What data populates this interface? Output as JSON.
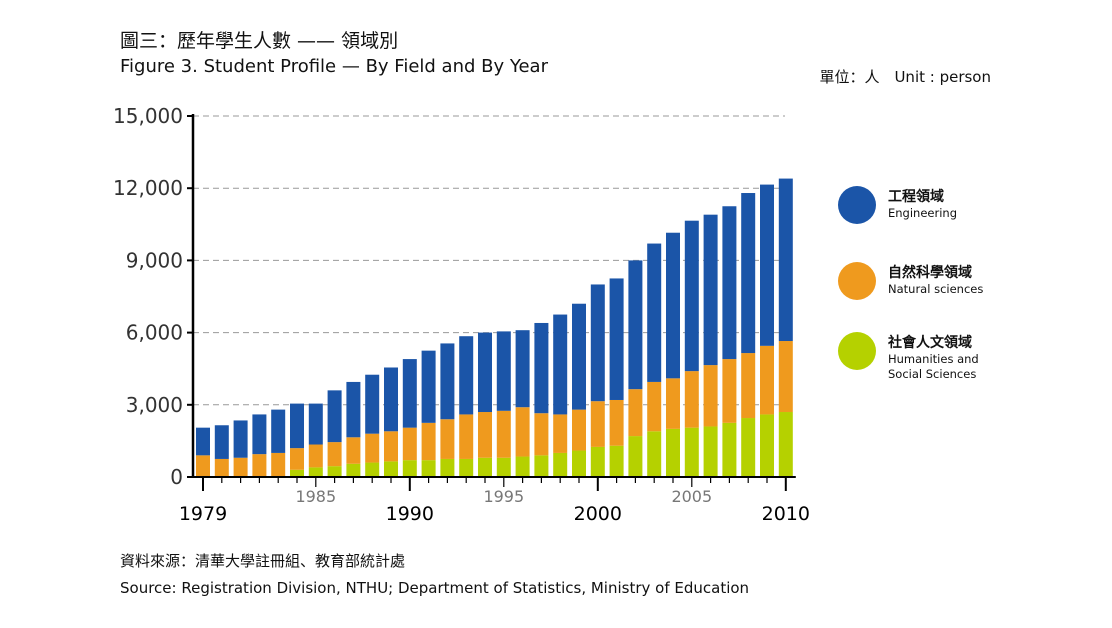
{
  "title_zh": "圖三：歷年學生人數 —— 領域別",
  "title_en": "Figure 3. Student Profile — By Field and By Year",
  "unit_label": "單位：人　Unit : person",
  "source_zh": "資料來源：清華大學註冊組、教育部統計處",
  "source_en": "Source: Registration Division, NTHU; Department of Statistics, Ministry of Education",
  "legend": [
    {
      "zh": "工程領域",
      "en": "Engineering",
      "color": "#1b55a8"
    },
    {
      "zh": "自然科學領域",
      "en": "Natural sciences",
      "color": "#ef9a1e"
    },
    {
      "zh": "社會人文領域",
      "en": "Humanities and Social Sciences",
      "color": "#b5d100"
    }
  ],
  "chart_data": {
    "type": "bar",
    "stacked": true,
    "categories": [
      1979,
      1980,
      1981,
      1982,
      1983,
      1984,
      1985,
      1986,
      1987,
      1988,
      1989,
      1990,
      1991,
      1992,
      1993,
      1994,
      1995,
      1996,
      1997,
      1998,
      1999,
      2000,
      2001,
      2002,
      2003,
      2004,
      2005,
      2006,
      2007,
      2008,
      2009,
      2010
    ],
    "series": [
      {
        "name": "社會人文領域",
        "color": "#b5d100",
        "values": [
          0,
          0,
          0,
          0,
          0,
          300,
          400,
          450,
          550,
          600,
          650,
          700,
          700,
          750,
          750,
          800,
          800,
          850,
          900,
          1000,
          1100,
          1250,
          1300,
          1700,
          1900,
          2000,
          2050,
          2100,
          2250,
          2450,
          2600,
          2700
        ]
      },
      {
        "name": "自然科學領域",
        "color": "#ef9a1e",
        "values": [
          900,
          750,
          800,
          950,
          1000,
          900,
          950,
          1000,
          1100,
          1200,
          1250,
          1350,
          1550,
          1650,
          1850,
          1900,
          1950,
          2050,
          1750,
          1600,
          1700,
          1900,
          1900,
          1950,
          2050,
          2100,
          2350,
          2550,
          2650,
          2700,
          2850,
          2950
        ]
      },
      {
        "name": "工程領域",
        "color": "#1b55a8",
        "values": [
          1150,
          1400,
          1550,
          1650,
          1800,
          1850,
          1700,
          2150,
          2300,
          2450,
          2650,
          2850,
          3000,
          3150,
          3250,
          3300,
          3300,
          3200,
          3750,
          4150,
          4400,
          4850,
          5050,
          5350,
          5750,
          6050,
          6250,
          6250,
          6350,
          6650,
          6700,
          6750
        ]
      }
    ],
    "ylim": [
      0,
      15000
    ],
    "yticks": [
      "0",
      "3,000",
      "6,000",
      "9,000",
      "12,000",
      "15,000"
    ],
    "ytick_values": [
      0,
      3000,
      6000,
      9000,
      12000,
      15000
    ],
    "xticks_major": [
      "1979",
      "1990",
      "2000",
      "2010"
    ],
    "xticks_minor": [
      "1985",
      "1995",
      "2005"
    ],
    "grid": "horizontal dashed",
    "legend_position": "right"
  }
}
